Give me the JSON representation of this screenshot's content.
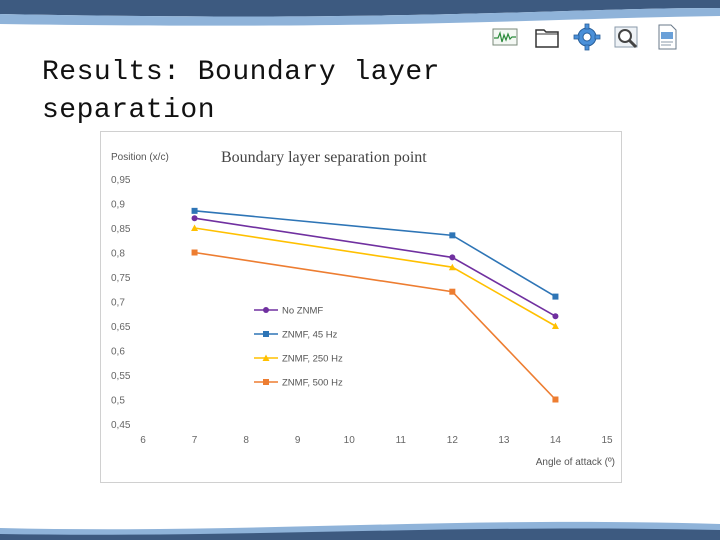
{
  "slide": {
    "title_line1": "Results: Boundary layer",
    "title_line2": "separation"
  },
  "toolbar": {
    "icons": [
      "waveform-icon",
      "folder-icon",
      "gear-icon",
      "magnifier-icon",
      "document-icon"
    ]
  },
  "colors": {
    "band_dark": "#3d5a80",
    "band_light": "#8fb3d9",
    "no_znmf": "#7030a0",
    "znmf_45": "#2e75b6",
    "znmf_250": "#ffc000",
    "znmf_500": "#ed7d31"
  },
  "chart_data": {
    "type": "line",
    "title": "Boundary layer separation point",
    "ylabel": "Position (x/c)",
    "xlabel": "Angle of attack (º)",
    "xlim": [
      6,
      15
    ],
    "ylim": [
      0.45,
      0.95
    ],
    "x_ticks": [
      "6",
      "7",
      "8",
      "9",
      "10",
      "11",
      "12",
      "13",
      "14",
      "15"
    ],
    "y_ticks": [
      "0,95",
      "0,9",
      "0,85",
      "0,8",
      "0,75",
      "0,7",
      "0,65",
      "0,6",
      "0,55",
      "0,5",
      "0,45"
    ],
    "legend_position": "center-left",
    "grid": false,
    "series": [
      {
        "name": "No ZNMF",
        "x": [
          7,
          12,
          14
        ],
        "values": [
          0.87,
          0.79,
          0.67
        ],
        "color": "#7030a0",
        "marker": "circle"
      },
      {
        "name": "ZNMF, 45 Hz",
        "x": [
          7,
          12,
          14
        ],
        "values": [
          0.885,
          0.835,
          0.71
        ],
        "color": "#2e75b6",
        "marker": "square"
      },
      {
        "name": "ZNMF, 250 Hz",
        "x": [
          7,
          12,
          14
        ],
        "values": [
          0.85,
          0.77,
          0.65
        ],
        "color": "#ffc000",
        "marker": "triangle"
      },
      {
        "name": "ZNMF, 500 Hz",
        "x": [
          7,
          12,
          14
        ],
        "values": [
          0.8,
          0.72,
          0.5
        ],
        "color": "#ed7d31",
        "marker": "square"
      }
    ]
  }
}
